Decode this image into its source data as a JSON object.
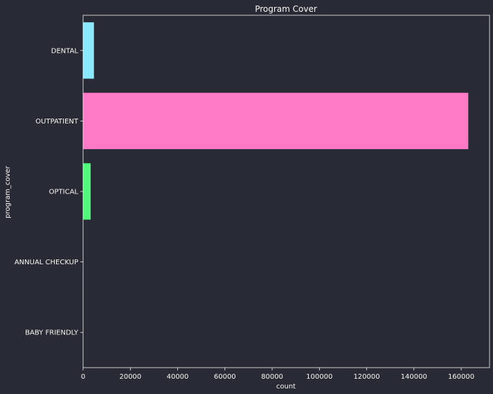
{
  "chart_data": {
    "type": "bar",
    "orientation": "horizontal",
    "title": "Program Cover",
    "xlabel": "count",
    "ylabel": "program_cover",
    "categories": [
      "DENTAL",
      "OUTPATIENT",
      "OPTICAL",
      "ANNUAL CHECKUP",
      "BABY FRIENDLY"
    ],
    "values": [
      4600,
      163000,
      3200,
      5,
      2
    ],
    "colors": [
      "#8be9fd",
      "#ff79c6",
      "#50fa7b",
      "#bd93f9",
      "#ffb86c"
    ],
    "xlim": [
      0,
      172000
    ],
    "xticks": [
      0,
      20000,
      40000,
      60000,
      80000,
      100000,
      120000,
      140000,
      160000
    ],
    "grid": false
  },
  "theme": {
    "background": "#282a36",
    "text": "#f8f8f2",
    "axis": "#f8f8f2"
  }
}
